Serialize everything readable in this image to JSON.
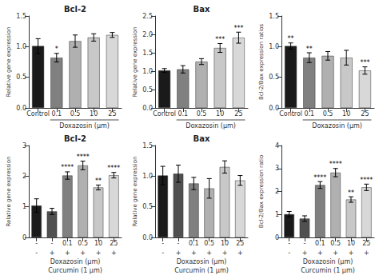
{
  "chart_data": [
    {
      "type": "bar",
      "title": "Bcl-2",
      "ylabel": "Relative gene expression",
      "xlabel": "Doxazosin (μm)",
      "categories": [
        "Control",
        "0.1",
        "0.5",
        "10",
        "25"
      ],
      "values": [
        1.01,
        0.82,
        1.09,
        1.15,
        1.19
      ],
      "errors": [
        0.12,
        0.07,
        0.1,
        0.06,
        0.04
      ],
      "colors": [
        "#1a1a1a",
        "#808080",
        "#b0b0b0",
        "#c8c8c8",
        "#d8d8d8"
      ],
      "significance": [
        null,
        "*",
        null,
        null,
        null
      ],
      "ylim": [
        0,
        1.5
      ],
      "yticks": [
        {
          "value": 0,
          "label": "0.0"
        },
        0.5,
        {
          "value": 1,
          "label": "1.0"
        },
        1.5
      ],
      "grid": false
    },
    {
      "type": "bar",
      "title": "Bax",
      "ylabel": "Relative gene expression",
      "xlabel": "Doxazosin (μm)",
      "categories": [
        "Control",
        "0.1",
        "0.5",
        "10",
        "25"
      ],
      "values": [
        1.02,
        1.05,
        1.26,
        1.63,
        1.91
      ],
      "errors": [
        0.05,
        0.1,
        0.08,
        0.12,
        0.15
      ],
      "colors": [
        "#1a1a1a",
        "#808080",
        "#b0b0b0",
        "#c8c8c8",
        "#d8d8d8"
      ],
      "significance": [
        null,
        null,
        null,
        "***",
        "***"
      ],
      "ylim": [
        0,
        2.5
      ],
      "yticks": [
        {
          "value": 0,
          "label": "0.0"
        },
        0.5,
        {
          "value": 1,
          "label": "1.0"
        },
        1.5,
        {
          "value": 2,
          "label": "2.0"
        },
        2.5
      ],
      "grid": false
    },
    {
      "type": "bar",
      "ylabel": "Bcl-2/Bax expression ratios",
      "xlabel": "Doxazosin (μm)",
      "categories": [
        "Control",
        "0.1",
        "0.5",
        "10",
        "25"
      ],
      "values": [
        1.01,
        0.82,
        0.85,
        0.82,
        0.61
      ],
      "errors": [
        0.05,
        0.08,
        0.07,
        0.12,
        0.06
      ],
      "colors": [
        "#1a1a1a",
        "#808080",
        "#b0b0b0",
        "#c8c8c8",
        "#d8d8d8"
      ],
      "significance": [
        "**",
        "**",
        null,
        null,
        "***"
      ],
      "ylim": [
        0,
        1.5
      ],
      "yticks": [
        {
          "value": 0,
          "label": "0.0"
        },
        0.5,
        {
          "value": 1,
          "label": "1.0"
        },
        1.5
      ],
      "grid": false
    },
    {
      "type": "bar",
      "title": "Bcl-2",
      "ylabel": "Relative gene expression",
      "xlabel": "Doxazosin (μm)",
      "xlabel2": "Curcumin (1 μm)",
      "categories": [
        "-",
        "-",
        "0.1",
        "0.5",
        "10",
        "25"
      ],
      "categories2": [
        "-",
        "+",
        "+",
        "+",
        "+",
        "+"
      ],
      "values": [
        1.04,
        0.85,
        2.02,
        2.35,
        1.63,
        2.03
      ],
      "errors": [
        0.22,
        0.1,
        0.12,
        0.14,
        0.08,
        0.09
      ],
      "colors": [
        "#1a1a1a",
        "#505050",
        "#808080",
        "#b0b0b0",
        "#c8c8c8",
        "#d8d8d8"
      ],
      "significance": [
        null,
        null,
        "****",
        "****",
        "**",
        "****"
      ],
      "ylim": [
        0,
        3
      ],
      "yticks": [
        0,
        1,
        2,
        3
      ],
      "grid": false
    },
    {
      "type": "bar",
      "title": "Bax",
      "ylabel": "Relative gene expression",
      "xlabel": "Doxazosin (μm)",
      "xlabel2": "Curcumin (1 μm)",
      "categories": [
        "-",
        "-",
        "0.1",
        "0.5",
        "10",
        "25"
      ],
      "categories2": [
        "-",
        "+",
        "+",
        "+",
        "+",
        "+"
      ],
      "values": [
        1.01,
        1.04,
        0.88,
        0.8,
        1.15,
        0.93
      ],
      "errors": [
        0.15,
        0.14,
        0.1,
        0.16,
        0.1,
        0.08
      ],
      "colors": [
        "#1a1a1a",
        "#505050",
        "#808080",
        "#b0b0b0",
        "#c8c8c8",
        "#d8d8d8"
      ],
      "significance": [
        null,
        null,
        null,
        null,
        null,
        null
      ],
      "ylim": [
        0,
        1.5
      ],
      "yticks": [
        {
          "value": 0,
          "label": "0.0"
        },
        0.5,
        {
          "value": 1,
          "label": "1.0"
        },
        1.5
      ],
      "grid": false
    },
    {
      "type": "bar",
      "ylabel": "Bcl-2/Bax expression ratio",
      "xlabel": "Doxazosin (μm)",
      "xlabel2": "Curcumin (1 μm)",
      "categories": [
        "-",
        "-",
        "0.1",
        "0.5",
        "10",
        "25"
      ],
      "categories2": [
        "-",
        "+",
        "+",
        "+",
        "+",
        "+"
      ],
      "values": [
        1.01,
        0.82,
        2.28,
        2.82,
        1.65,
        2.18
      ],
      "errors": [
        0.12,
        0.12,
        0.15,
        0.18,
        0.12,
        0.14
      ],
      "colors": [
        "#1a1a1a",
        "#505050",
        "#808080",
        "#b0b0b0",
        "#c8c8c8",
        "#d8d8d8"
      ],
      "significance": [
        null,
        null,
        "****",
        "****",
        "**",
        "****"
      ],
      "ylim": [
        0,
        4
      ],
      "yticks": [
        0,
        1,
        2,
        3,
        4
      ],
      "grid": false
    }
  ]
}
